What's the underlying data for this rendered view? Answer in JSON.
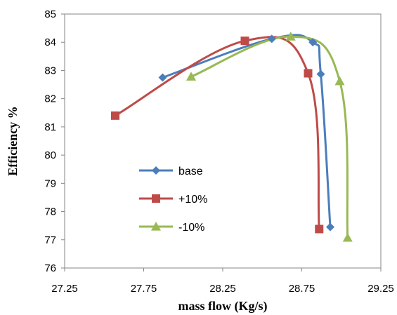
{
  "chart_data": {
    "type": "line",
    "xlabel": "mass flow (Kg/s)",
    "ylabel": "Efficiency %",
    "xlim": [
      27.25,
      29.25
    ],
    "ylim": [
      76,
      85
    ],
    "xticks": [
      "27.25",
      "27.75",
      "28.25",
      "28.75",
      "29.25"
    ],
    "yticks": [
      "76",
      "77",
      "78",
      "79",
      "80",
      "81",
      "82",
      "83",
      "84",
      "85"
    ],
    "grid": false,
    "legend_position": "center-left",
    "series": [
      {
        "name": "base",
        "color": "#4a7ebb",
        "marker": "diamond",
        "points": [
          [
            27.87,
            82.75
          ],
          [
            28.56,
            84.12
          ],
          [
            28.82,
            84.0
          ],
          [
            28.87,
            82.87
          ],
          [
            28.93,
            77.45
          ]
        ]
      },
      {
        "name": "+10%",
        "color": "#be4b48",
        "marker": "square",
        "points": [
          [
            27.57,
            81.4
          ],
          [
            28.39,
            84.05
          ],
          [
            28.79,
            82.9
          ],
          [
            28.86,
            77.38
          ]
        ]
      },
      {
        "name": "-10%",
        "color": "#98b954",
        "marker": "triangle",
        "points": [
          [
            28.05,
            82.78
          ],
          [
            28.68,
            84.2
          ],
          [
            28.99,
            82.62
          ],
          [
            29.04,
            77.07
          ]
        ]
      }
    ]
  }
}
